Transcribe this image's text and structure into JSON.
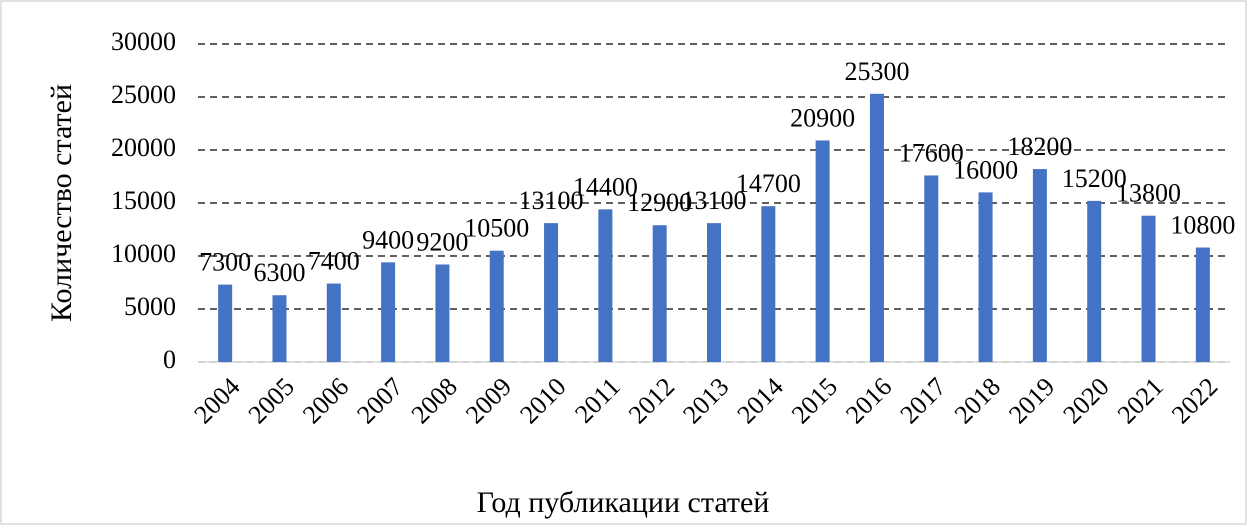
{
  "chart_data": {
    "type": "bar",
    "x_label": "Год публикации статей",
    "y_label": "Количество статей",
    "categories": [
      "2004",
      "2005",
      "2006",
      "2007",
      "2008",
      "2009",
      "2010",
      "2011",
      "2012",
      "2013",
      "2014",
      "2015",
      "2016",
      "2017",
      "2018",
      "2019",
      "2020",
      "2021",
      "2022"
    ],
    "values": [
      7300,
      6300,
      7400,
      9400,
      9200,
      10500,
      13100,
      14400,
      12900,
      13100,
      14700,
      20900,
      25300,
      17600,
      16000,
      18200,
      15200,
      13800,
      10800
    ],
    "color": "#4472c4",
    "ylim": [
      0,
      30000
    ],
    "yticks": [
      0,
      5000,
      10000,
      15000,
      20000,
      25000,
      30000
    ],
    "grid": true
  }
}
